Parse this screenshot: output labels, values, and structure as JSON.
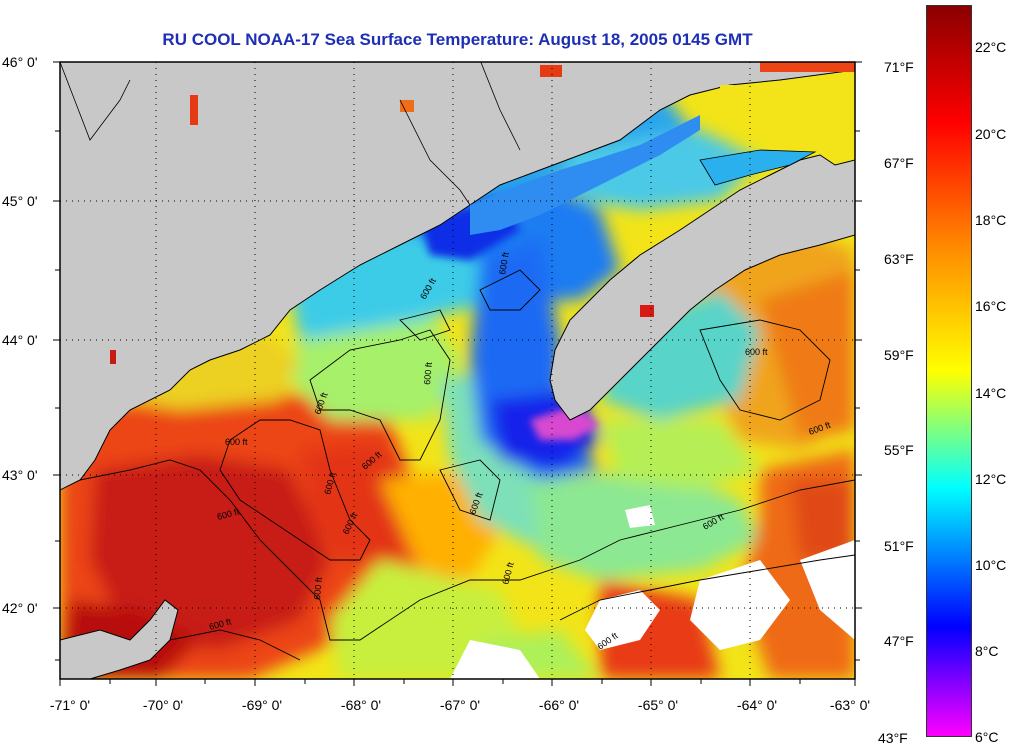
{
  "title": "RU COOL  NOAA-17  Sea Surface Temperature:  August 18, 2005 0145 GMT",
  "latitude_labels": [
    "46° 0'",
    "45° 0'",
    "44° 0'",
    "43° 0'",
    "42° 0'"
  ],
  "longitude_labels": [
    "-71° 0'",
    "-70° 0'",
    "-69° 0'",
    "-68° 0'",
    "-67° 0'",
    "-66° 0'",
    "-65° 0'",
    "-64° 0'",
    "-63° 0'"
  ],
  "colorbar": {
    "fahrenheit_labels": [
      "71°F",
      "67°F",
      "63°F",
      "59°F",
      "55°F",
      "51°F",
      "47°F",
      "43°F"
    ],
    "celsius_labels": [
      "22°C",
      "20°C",
      "18°C",
      "16°C",
      "14°C",
      "12°C",
      "10°C",
      "8°C",
      "6°C"
    ],
    "colors": [
      "#8a0000",
      "#ff0000",
      "#ff8a00",
      "#ffff00",
      "#00ffff",
      "#0000ff",
      "#ff00ff"
    ]
  },
  "isobath_labels": [
    "600 ft",
    "600 ft",
    "600 ft",
    "600 ft",
    "600 ft",
    "600 ft",
    "600 ft",
    "600 ft",
    "600 ft",
    "600 ft",
    "600 ft",
    "600 ft",
    "600 ft",
    "600 ft",
    "600 ft",
    "600 ft",
    "600 ft"
  ]
}
